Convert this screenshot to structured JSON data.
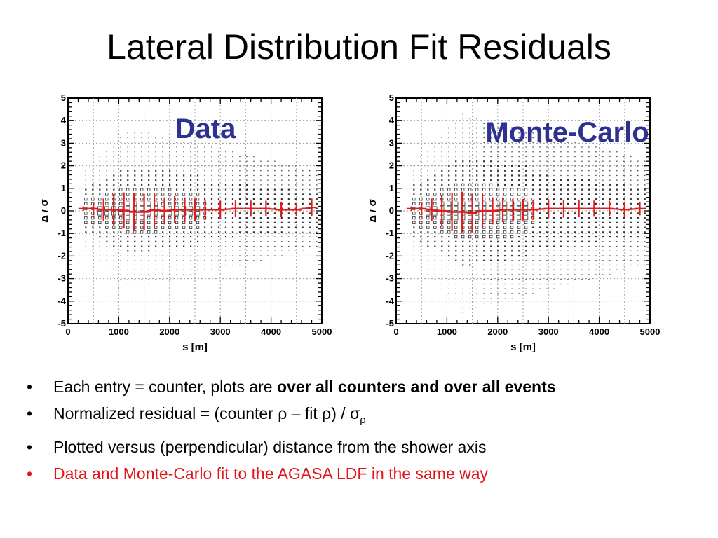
{
  "title": "Lateral Distribution Fit Residuals",
  "chart_data": [
    {
      "type": "scatter",
      "label": "Data",
      "xlabel": "s [m]",
      "ylabel": "Δ / σ",
      "xlim": [
        0,
        5000
      ],
      "ylim": [
        -5,
        5
      ],
      "x_ticks": [
        "0",
        "1000",
        "2000",
        "3000",
        "4000",
        "5000"
      ],
      "y_ticks": [
        "-5",
        "-4",
        "-3",
        "-2",
        "-1",
        "0",
        "1",
        "2",
        "3",
        "4",
        "5"
      ],
      "profile": {
        "x": [
          300,
          500,
          700,
          900,
          1100,
          1300,
          1500,
          1700,
          1900,
          2100,
          2300,
          2500,
          2700,
          3000,
          3300,
          3600,
          3900,
          4200,
          4500,
          4800
        ],
        "y": [
          0.1,
          0.1,
          0.05,
          0.05,
          0.02,
          -0.05,
          -0.05,
          0.05,
          0.0,
          0.05,
          0.05,
          0.05,
          0.05,
          0.05,
          0.1,
          0.1,
          0.1,
          0.05,
          0.05,
          0.15
        ],
        "err": [
          0.1,
          0.3,
          0.5,
          0.7,
          0.8,
          0.85,
          0.8,
          0.7,
          0.6,
          0.6,
          0.55,
          0.5,
          0.45,
          0.4,
          0.38,
          0.36,
          0.35,
          0.33,
          0.3,
          0.4
        ]
      }
    },
    {
      "type": "scatter",
      "label": "Monte-Carlo",
      "xlabel": "s [m]",
      "ylabel": "Δ / σ",
      "xlim": [
        0,
        5000
      ],
      "ylim": [
        -5,
        5
      ],
      "x_ticks": [
        "0",
        "1000",
        "2000",
        "3000",
        "4000",
        "5000"
      ],
      "y_ticks": [
        "-5",
        "-4",
        "-3",
        "-2",
        "-1",
        "0",
        "1",
        "2",
        "3",
        "4",
        "5"
      ],
      "profile": {
        "x": [
          300,
          500,
          700,
          900,
          1100,
          1300,
          1500,
          1700,
          1900,
          2100,
          2300,
          2500,
          2700,
          3000,
          3300,
          3600,
          3900,
          4200,
          4500,
          4800
        ],
        "y": [
          0.1,
          0.1,
          0.05,
          0.0,
          -0.05,
          -0.05,
          -0.1,
          0.0,
          0.0,
          0.05,
          0.05,
          0.05,
          0.05,
          0.1,
          0.1,
          0.1,
          0.1,
          0.1,
          0.05,
          0.1
        ],
        "err": [
          0.1,
          0.3,
          0.5,
          0.7,
          0.85,
          0.9,
          0.85,
          0.75,
          0.6,
          0.55,
          0.5,
          0.48,
          0.45,
          0.42,
          0.4,
          0.38,
          0.36,
          0.35,
          0.33,
          0.3
        ]
      }
    }
  ],
  "bullets": {
    "b1_prefix": "Each entry = counter, plots are ",
    "b1_bold": "over all counters and over all events",
    "b2_main": "Normalized residual = (counter ρ – fit ρ) / σ",
    "b2_sub": "ρ",
    "b3": "Plotted versus (perpendicular) distance from the shower axis",
    "b4": "Data and Monte-Carlo fit to the AGASA LDF in the same way"
  },
  "colors": {
    "label_blue": "#2e3192",
    "profile_red": "#e31b1b",
    "bullet_red": "#e0141a"
  }
}
